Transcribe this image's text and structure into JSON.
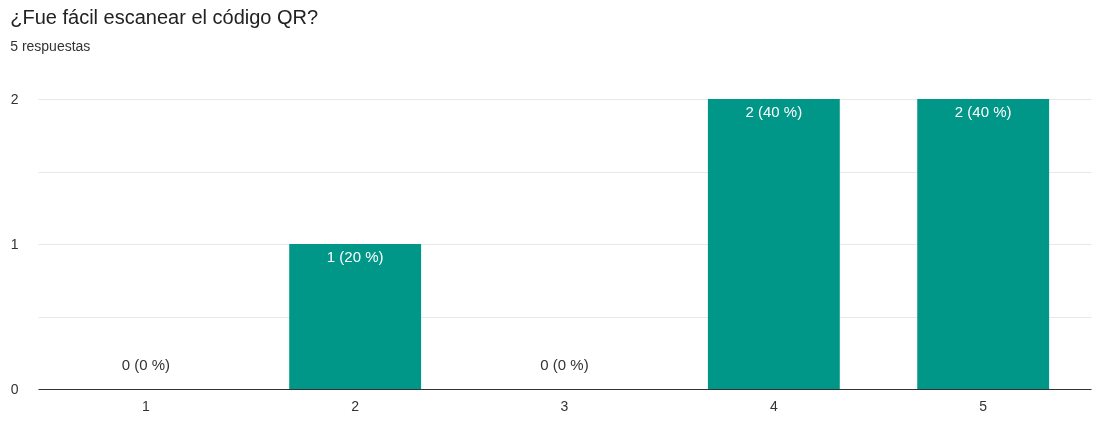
{
  "chart_data": {
    "type": "bar",
    "title": "¿Fue fácil escanear el código QR?",
    "subtitle": "5 respuestas",
    "categories": [
      "1",
      "2",
      "3",
      "4",
      "5"
    ],
    "values": [
      0,
      1,
      0,
      2,
      2
    ],
    "value_labels": [
      "0 (0 %)",
      "1 (20 %)",
      "0 (0 %)",
      "2 (40 %)",
      "2 (40 %)"
    ],
    "color": "#009688",
    "ylim": [
      0,
      2
    ],
    "yticks": [
      0,
      {
        "value": 0.5,
        "label": null
      },
      1,
      {
        "value": 1.5,
        "label": null
      },
      2
    ],
    "grid": "y"
  }
}
